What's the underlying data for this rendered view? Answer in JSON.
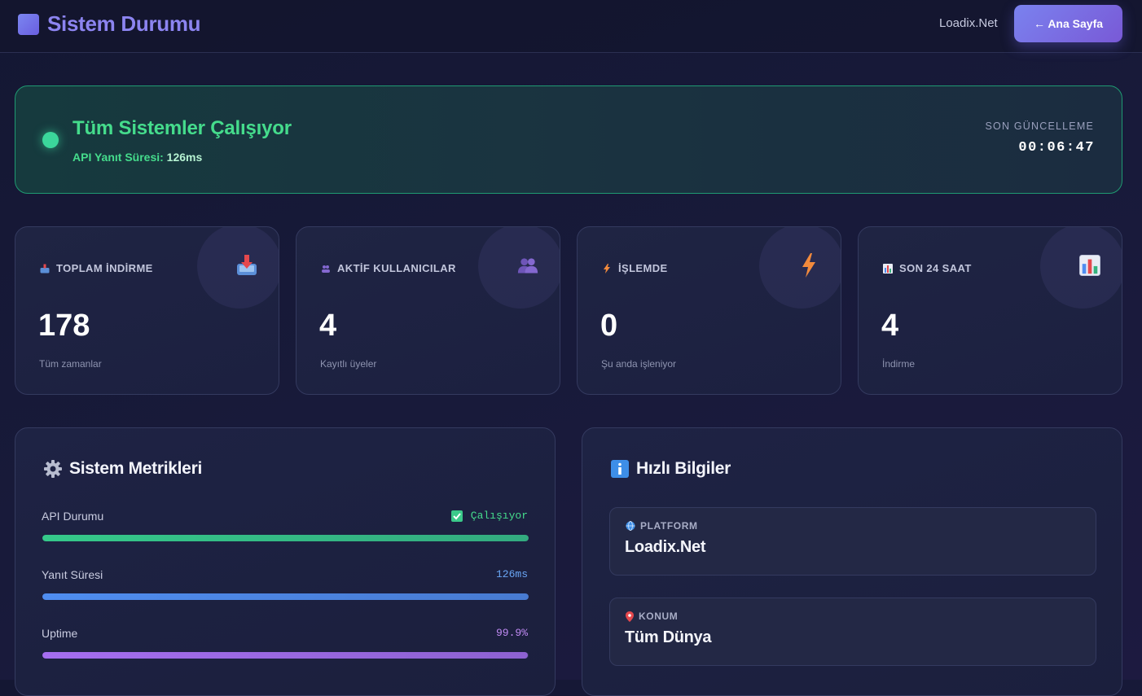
{
  "header": {
    "title": "Sistem Durumu",
    "site_name": "Loadix.Net",
    "home_button": "← Ana Sayfa"
  },
  "status": {
    "title": "Tüm Sistemler Çalışıyor",
    "response_label": "API Yanıt Süresi:",
    "response_value": "126ms",
    "updated_label": "SON GÜNCELLEME",
    "updated_time": "00:06:47"
  },
  "stats": [
    {
      "label": "TOPLAM İNDİRME",
      "value": "178",
      "note": "Tüm zamanlar",
      "icon": "inbox-tray-icon"
    },
    {
      "label": "AKTİF KULLANICILAR",
      "value": "4",
      "note": "Kayıtlı üyeler",
      "icon": "users-icon"
    },
    {
      "label": "İŞLEMDE",
      "value": "0",
      "note": "Şu anda işleniyor",
      "icon": "lightning-icon"
    },
    {
      "label": "SON 24 SAAT",
      "value": "4",
      "note": "İndirme",
      "icon": "bar-chart-icon"
    }
  ],
  "metrics": {
    "title": "Sistem Metrikleri",
    "items": [
      {
        "label": "API Durumu",
        "value": "Çalışıyor",
        "fill": 1.0,
        "color": "#35c98a"
      },
      {
        "label": "Yanıt Süresi",
        "value": "126ms",
        "fill": 1.0,
        "color": "#4f8df0"
      },
      {
        "label": "Uptime",
        "value": "99.9%",
        "fill": 0.999,
        "color": "#a56ef0"
      }
    ]
  },
  "info": {
    "title": "Hızlı Bilgiler",
    "items": [
      {
        "label": "PLATFORM",
        "value": "Loadix.Net",
        "icon": "globe-icon"
      },
      {
        "label": "KONUM",
        "value": "Tüm Dünya",
        "icon": "pin-icon"
      }
    ]
  },
  "colors": {
    "accent": "#7a82ef",
    "success": "#45dc8c",
    "background": "#161936"
  }
}
